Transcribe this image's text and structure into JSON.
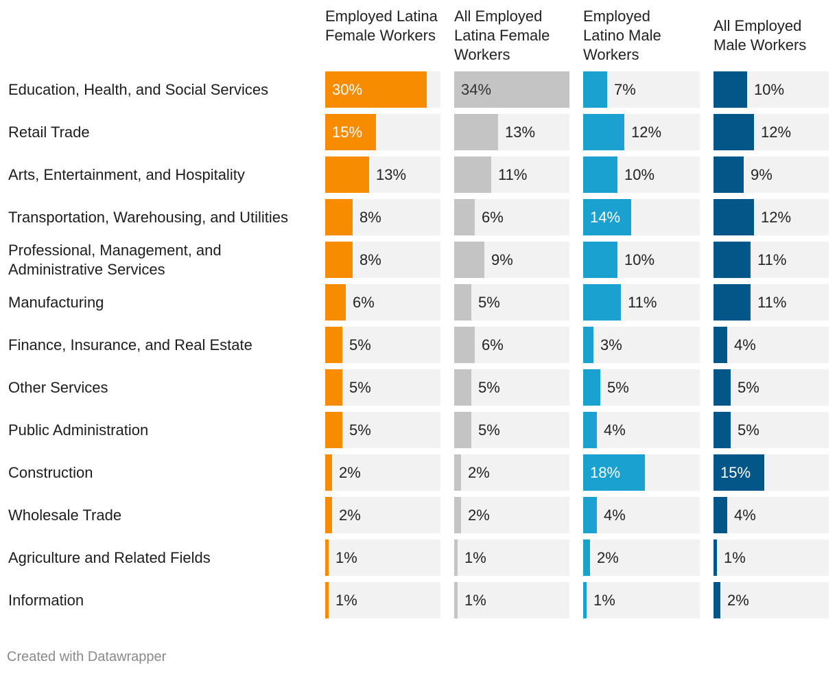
{
  "chart_data": {
    "type": "bar",
    "orientation": "horizontal",
    "layout": "small-multiples",
    "title": "",
    "xlabel": "",
    "ylabel": "",
    "xlim": [
      0,
      34
    ],
    "grid": false,
    "legend": "none",
    "categories": [
      "Education, Health, and Social Services",
      "Retail Trade",
      "Arts, Entertainment, and Hospitality",
      "Transportation, Warehousing, and Utilities",
      "Professional, Management, and Administrative Services",
      "Manufacturing",
      "Finance, Insurance, and Real Estate",
      "Other Services",
      "Public Administration",
      "Construction",
      "Wholesale Trade",
      "Agriculture and Related Fields",
      "Information"
    ],
    "series": [
      {
        "name": "Employed Latina Female Workers",
        "color": "#f78c00",
        "label_color_inside": "#ffffff",
        "values": [
          30,
          15,
          13,
          8,
          8,
          6,
          5,
          5,
          5,
          2,
          2,
          1,
          1
        ]
      },
      {
        "name": "All Employed Latina Female Workers",
        "color": "#c4c4c4",
        "label_color_inside": "#333333",
        "values": [
          34,
          13,
          11,
          6,
          9,
          5,
          6,
          5,
          5,
          2,
          2,
          1,
          1
        ]
      },
      {
        "name": "Employed Latino Male Workers",
        "color": "#1aa1cf",
        "label_color_inside": "#ffffff",
        "values": [
          7,
          12,
          10,
          14,
          10,
          11,
          3,
          5,
          4,
          18,
          4,
          2,
          1
        ]
      },
      {
        "name": "All Employed Male Workers",
        "color": "#025688",
        "label_color_inside": "#ffffff",
        "values": [
          10,
          12,
          9,
          12,
          11,
          11,
          4,
          5,
          5,
          15,
          4,
          1,
          2
        ]
      }
    ],
    "value_suffix": "%"
  },
  "row_labels": [
    "Education, Health, and Social Services",
    "Retail Trade",
    "Arts, Entertainment, and Hospitality",
    "Transportation, Warehousing, and Utilities",
    "Professional, Management, and Administrative Services",
    "Manufacturing",
    "Finance, Insurance, and Real Estate",
    "Other Services",
    "Public Administration",
    "Construction",
    "Wholesale Trade",
    "Agriculture and Related Fields",
    "Information"
  ],
  "column_headers": [
    "Employed Latina Female Workers",
    "All Employed Latina Female Workers",
    "Employed Latino Male Workers",
    "All Employed Male Workers"
  ],
  "footer": "Created with Datawrapper"
}
